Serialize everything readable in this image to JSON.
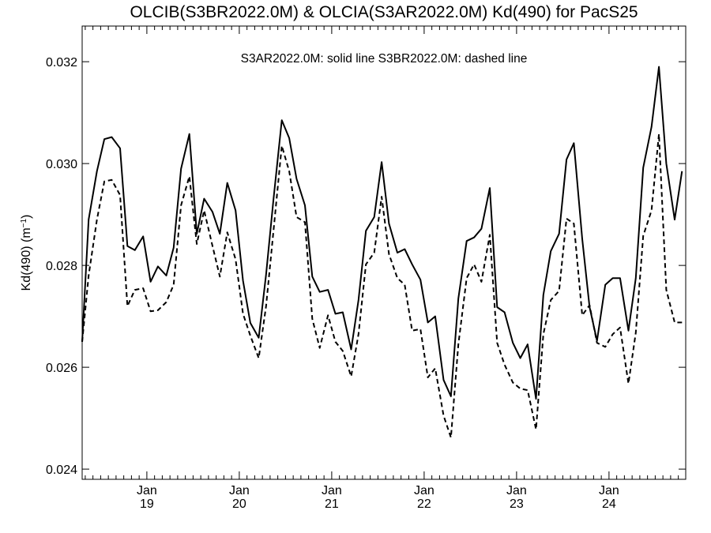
{
  "chart_data": {
    "type": "line",
    "title": "OLCIB(S3BR2022.0M) & OLCIA(S3AR2022.0M)  Kd(490) for PacS25",
    "annotation": "S3AR2022.0M: solid line   S3BR2022.0M: dashed line",
    "ylabel": "Kd(490) (m",
    "ylabel_sup": "−1",
    "ylabel_close": ")",
    "ylim": [
      0.0238,
      0.0327
    ],
    "xlim": [
      2018.3,
      2024.83
    ],
    "y_ticks": [
      {
        "value": 0.024,
        "label": "0.024"
      },
      {
        "value": 0.026,
        "label": "0.026"
      },
      {
        "value": 0.028,
        "label": "0.028"
      },
      {
        "value": 0.03,
        "label": "0.030"
      },
      {
        "value": 0.032,
        "label": "0.032"
      }
    ],
    "x_ticks": [
      {
        "value": 2019.0,
        "month": "Jan",
        "year": "19"
      },
      {
        "value": 2020.0,
        "month": "Jan",
        "year": "20"
      },
      {
        "value": 2021.0,
        "month": "Jan",
        "year": "21"
      },
      {
        "value": 2022.0,
        "month": "Jan",
        "year": "22"
      },
      {
        "value": 2023.0,
        "month": "Jan",
        "year": "23"
      },
      {
        "value": 2024.0,
        "month": "Jan",
        "year": "24"
      }
    ],
    "series": [
      {
        "name": "S3AR2022.0M",
        "style": "solid",
        "color": "#000000",
        "points": [
          [
            2018.3,
            0.0265
          ],
          [
            2018.37,
            0.0289
          ],
          [
            2018.46,
            0.02985
          ],
          [
            2018.54,
            0.03048
          ],
          [
            2018.62,
            0.03052
          ],
          [
            2018.71,
            0.0303
          ],
          [
            2018.79,
            0.02838
          ],
          [
            2018.87,
            0.0283
          ],
          [
            2018.96,
            0.02857
          ],
          [
            2019.04,
            0.02768
          ],
          [
            2019.12,
            0.02798
          ],
          [
            2019.21,
            0.0278
          ],
          [
            2019.29,
            0.02835
          ],
          [
            2019.37,
            0.0299
          ],
          [
            2019.46,
            0.03058
          ],
          [
            2019.54,
            0.02862
          ],
          [
            2019.62,
            0.02931
          ],
          [
            2019.71,
            0.02905
          ],
          [
            2019.79,
            0.02862
          ],
          [
            2019.87,
            0.02962
          ],
          [
            2019.96,
            0.02908
          ],
          [
            2020.04,
            0.0277
          ],
          [
            2020.12,
            0.02687
          ],
          [
            2020.21,
            0.02658
          ],
          [
            2020.29,
            0.02782
          ],
          [
            2020.37,
            0.0293
          ],
          [
            2020.46,
            0.03085
          ],
          [
            2020.54,
            0.0305
          ],
          [
            2020.62,
            0.0297
          ],
          [
            2020.71,
            0.02918
          ],
          [
            2020.79,
            0.02778
          ],
          [
            2020.87,
            0.02748
          ],
          [
            2020.96,
            0.02752
          ],
          [
            2021.04,
            0.02705
          ],
          [
            2021.12,
            0.02708
          ],
          [
            2021.21,
            0.02635
          ],
          [
            2021.29,
            0.02732
          ],
          [
            2021.37,
            0.02868
          ],
          [
            2021.46,
            0.02895
          ],
          [
            2021.54,
            0.03003
          ],
          [
            2021.62,
            0.02882
          ],
          [
            2021.71,
            0.02825
          ],
          [
            2021.79,
            0.02832
          ],
          [
            2021.87,
            0.02802
          ],
          [
            2021.96,
            0.02772
          ],
          [
            2022.04,
            0.02688
          ],
          [
            2022.12,
            0.027
          ],
          [
            2022.21,
            0.02575
          ],
          [
            2022.29,
            0.02543
          ],
          [
            2022.37,
            0.02735
          ],
          [
            2022.46,
            0.02848
          ],
          [
            2022.54,
            0.02855
          ],
          [
            2022.62,
            0.02872
          ],
          [
            2022.71,
            0.02952
          ],
          [
            2022.79,
            0.02718
          ],
          [
            2022.87,
            0.02708
          ],
          [
            2022.96,
            0.02648
          ],
          [
            2023.04,
            0.02618
          ],
          [
            2023.12,
            0.02645
          ],
          [
            2023.21,
            0.02538
          ],
          [
            2023.29,
            0.02742
          ],
          [
            2023.37,
            0.02828
          ],
          [
            2023.46,
            0.02862
          ],
          [
            2023.54,
            0.03008
          ],
          [
            2023.62,
            0.0304
          ],
          [
            2023.71,
            0.02852
          ],
          [
            2023.79,
            0.02718
          ],
          [
            2023.87,
            0.02652
          ],
          [
            2023.96,
            0.02762
          ],
          [
            2024.04,
            0.02775
          ],
          [
            2024.12,
            0.02775
          ],
          [
            2024.21,
            0.02672
          ],
          [
            2024.29,
            0.02775
          ],
          [
            2024.37,
            0.02992
          ],
          [
            2024.46,
            0.03072
          ],
          [
            2024.54,
            0.0319
          ],
          [
            2024.62,
            0.03
          ],
          [
            2024.71,
            0.0289
          ],
          [
            2024.79,
            0.02985
          ]
        ]
      },
      {
        "name": "S3BR2022.0M",
        "style": "dashed",
        "color": "#000000",
        "points": [
          [
            2018.3,
            0.0265
          ],
          [
            2018.37,
            0.0278
          ],
          [
            2018.46,
            0.0289
          ],
          [
            2018.54,
            0.02965
          ],
          [
            2018.62,
            0.02968
          ],
          [
            2018.71,
            0.02938
          ],
          [
            2018.79,
            0.0272
          ],
          [
            2018.87,
            0.02752
          ],
          [
            2018.96,
            0.02755
          ],
          [
            2019.04,
            0.0271
          ],
          [
            2019.12,
            0.02712
          ],
          [
            2019.21,
            0.02728
          ],
          [
            2019.29,
            0.02762
          ],
          [
            2019.37,
            0.02918
          ],
          [
            2019.46,
            0.02975
          ],
          [
            2019.54,
            0.02842
          ],
          [
            2019.62,
            0.02908
          ],
          [
            2019.71,
            0.02838
          ],
          [
            2019.79,
            0.02778
          ],
          [
            2019.87,
            0.02865
          ],
          [
            2019.96,
            0.02812
          ],
          [
            2020.04,
            0.02705
          ],
          [
            2020.12,
            0.02662
          ],
          [
            2020.21,
            0.02618
          ],
          [
            2020.29,
            0.0272
          ],
          [
            2020.37,
            0.02868
          ],
          [
            2020.46,
            0.03035
          ],
          [
            2020.54,
            0.02985
          ],
          [
            2020.62,
            0.02895
          ],
          [
            2020.71,
            0.02885
          ],
          [
            2020.79,
            0.02695
          ],
          [
            2020.87,
            0.02638
          ],
          [
            2020.96,
            0.02702
          ],
          [
            2021.04,
            0.0265
          ],
          [
            2021.12,
            0.02632
          ],
          [
            2021.21,
            0.02582
          ],
          [
            2021.29,
            0.02665
          ],
          [
            2021.37,
            0.02802
          ],
          [
            2021.46,
            0.02825
          ],
          [
            2021.54,
            0.02935
          ],
          [
            2021.62,
            0.02822
          ],
          [
            2021.71,
            0.02775
          ],
          [
            2021.79,
            0.02762
          ],
          [
            2021.87,
            0.02672
          ],
          [
            2021.96,
            0.02675
          ],
          [
            2022.04,
            0.0258
          ],
          [
            2022.12,
            0.02598
          ],
          [
            2022.21,
            0.02505
          ],
          [
            2022.29,
            0.02462
          ],
          [
            2022.37,
            0.02645
          ],
          [
            2022.46,
            0.02775
          ],
          [
            2022.54,
            0.02802
          ],
          [
            2022.62,
            0.02768
          ],
          [
            2022.71,
            0.0286
          ],
          [
            2022.79,
            0.02648
          ],
          [
            2022.87,
            0.02605
          ],
          [
            2022.96,
            0.0257
          ],
          [
            2023.04,
            0.02558
          ],
          [
            2023.12,
            0.02555
          ],
          [
            2023.21,
            0.02478
          ],
          [
            2023.29,
            0.02665
          ],
          [
            2023.37,
            0.02732
          ],
          [
            2023.46,
            0.0275
          ],
          [
            2023.54,
            0.02892
          ],
          [
            2023.62,
            0.02882
          ],
          [
            2023.71,
            0.02702
          ],
          [
            2023.79,
            0.02722
          ],
          [
            2023.87,
            0.02648
          ],
          [
            2023.96,
            0.0264
          ],
          [
            2024.04,
            0.02665
          ],
          [
            2024.12,
            0.02678
          ],
          [
            2024.21,
            0.02568
          ],
          [
            2024.29,
            0.02668
          ],
          [
            2024.37,
            0.02858
          ],
          [
            2024.46,
            0.02908
          ],
          [
            2024.54,
            0.03058
          ],
          [
            2024.62,
            0.02752
          ],
          [
            2024.71,
            0.02688
          ],
          [
            2024.79,
            0.02688
          ]
        ]
      }
    ]
  }
}
